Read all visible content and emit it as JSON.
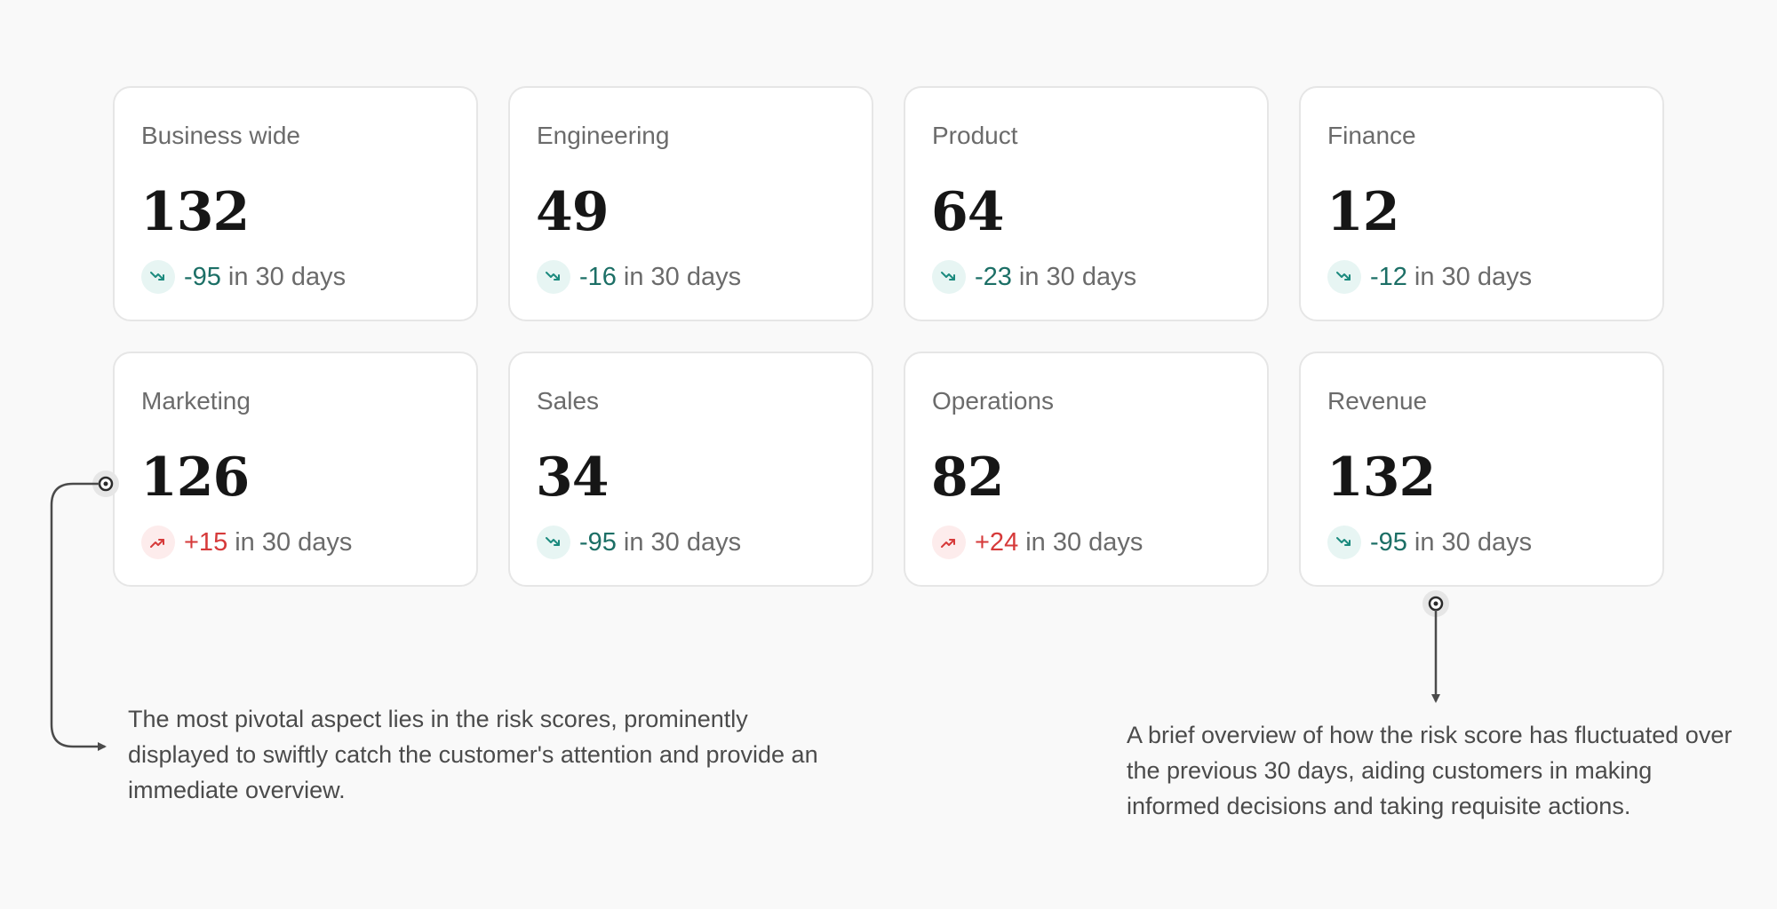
{
  "cards": [
    {
      "label": "Business wide",
      "value": "132",
      "delta": "-95",
      "direction": "down",
      "suffix": "in 30 days",
      "icon": "trend-down-icon"
    },
    {
      "label": "Engineering",
      "value": "49",
      "delta": "-16",
      "direction": "down",
      "suffix": "in 30 days",
      "icon": "trend-down-icon"
    },
    {
      "label": "Product",
      "value": "64",
      "delta": "-23",
      "direction": "down",
      "suffix": "in 30 days",
      "icon": "trend-down-icon"
    },
    {
      "label": "Finance",
      "value": "12",
      "delta": "-12",
      "direction": "down",
      "suffix": "in 30 days",
      "icon": "trend-down-icon"
    },
    {
      "label": "Marketing",
      "value": "126",
      "delta": "+15",
      "direction": "up",
      "suffix": "in 30 days",
      "icon": "trend-up-icon"
    },
    {
      "label": "Sales",
      "value": "34",
      "delta": "-95",
      "direction": "down",
      "suffix": "in 30 days",
      "icon": "trend-down-icon"
    },
    {
      "label": "Operations",
      "value": "82",
      "delta": "+24",
      "direction": "up",
      "suffix": "in 30 days",
      "icon": "trend-up-icon"
    },
    {
      "label": "Revenue",
      "value": "132",
      "delta": "-95",
      "direction": "down",
      "suffix": "in 30 days",
      "icon": "trend-down-icon"
    }
  ],
  "annotations": {
    "left": "The most pivotal aspect lies in the risk scores, prominently displayed to swiftly catch the customer's attention and provide an immediate overview.",
    "right": "A brief overview of how the risk score has fluctuated over the previous 30 days, aiding customers in making informed decisions and taking requisite actions."
  },
  "colors": {
    "background": "#f9f9f9",
    "card_background": "#ffffff",
    "card_border": "#e6e6e6",
    "down_text": "#1c6f66",
    "down_icon_bg": "#e7f5f3",
    "up_text": "#d63a3a",
    "up_icon_bg": "#fdecec",
    "muted_text": "#6b6b6b",
    "value_text": "#161616",
    "connector": "#4b4b4b"
  }
}
